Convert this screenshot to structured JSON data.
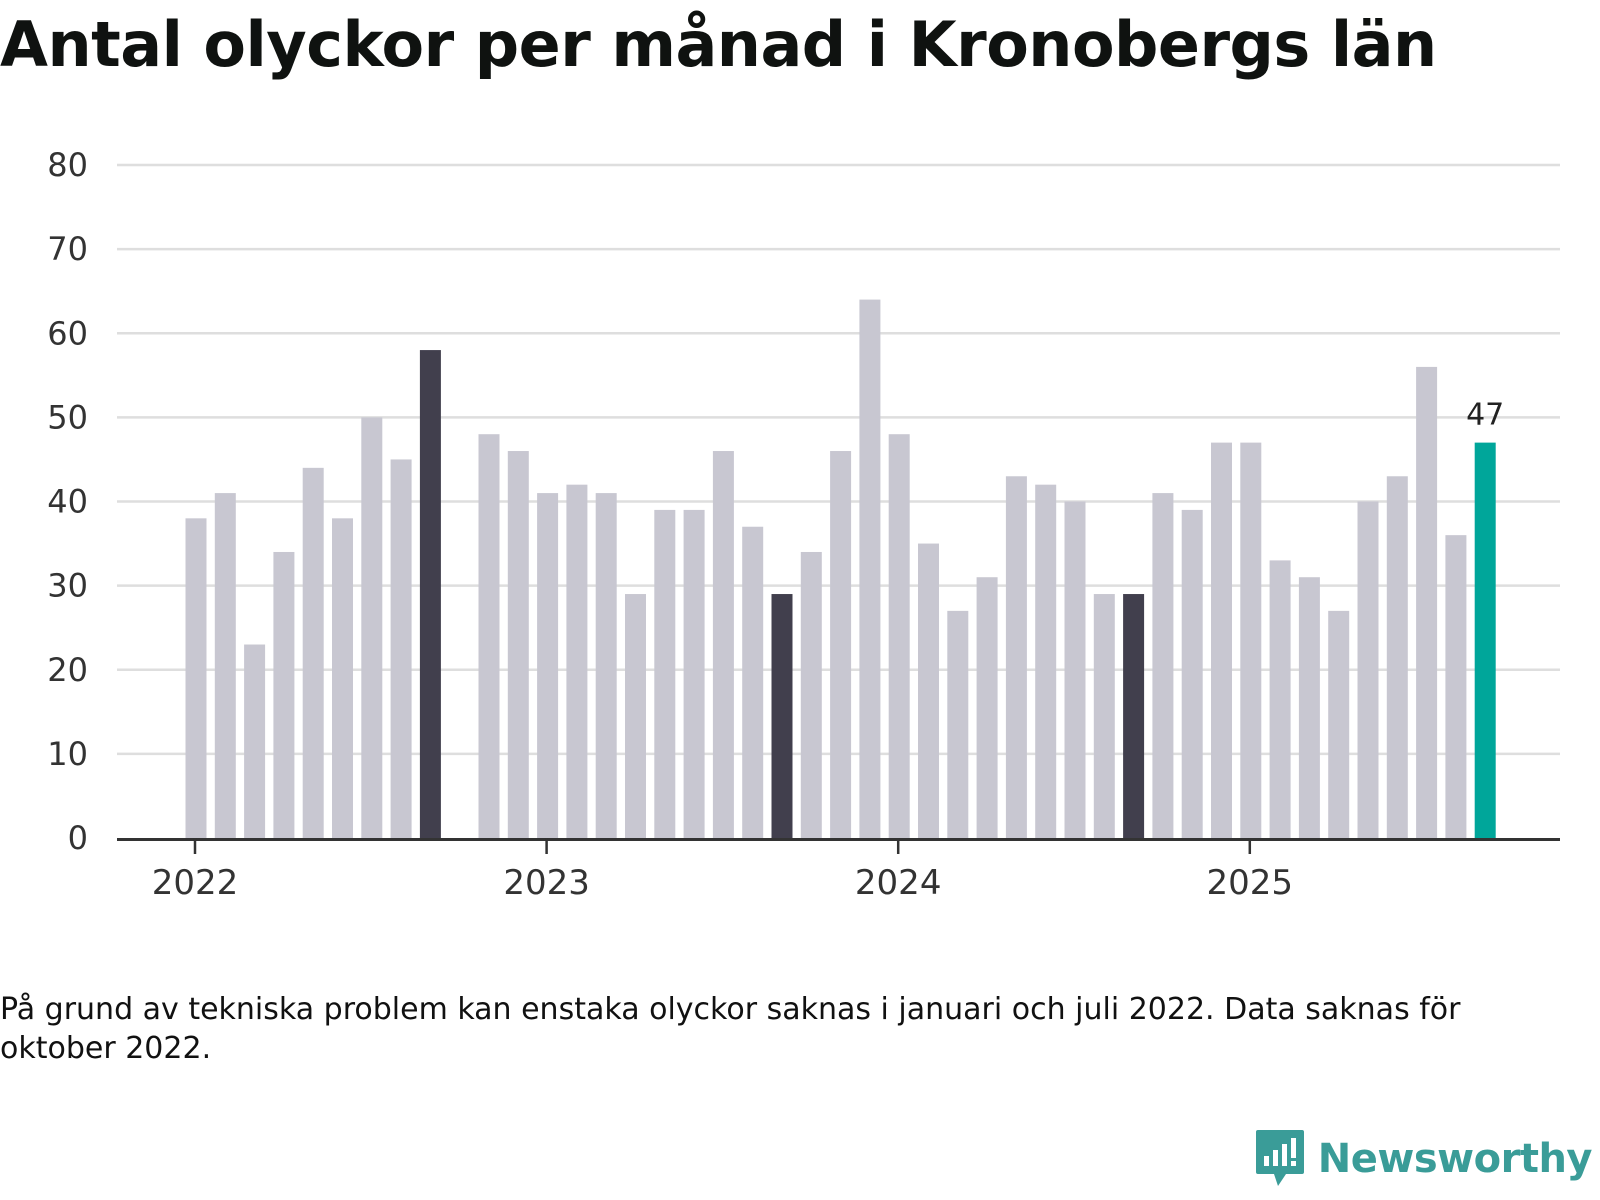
{
  "title": "Antal olyckor per månad i Kronobergs län",
  "note": "På grund av tekniska problem kan enstaka olyckor saknas i januari och juli 2022. Data saknas för oktober 2022.",
  "brand": {
    "name": "Newsworthy",
    "icon": "newsworthy-logo-icon",
    "color": "#3a9c98"
  },
  "chart_data": {
    "type": "bar",
    "title": "Antal olyckor per månad i Kronobergs län",
    "xlabel": "",
    "ylabel": "",
    "ylim": [
      0,
      80
    ],
    "yticks": [
      "0",
      "10",
      "20",
      "30",
      "40",
      "50",
      "60",
      "70",
      "80"
    ],
    "xticks": [
      {
        "label": "2022",
        "month": "2022-01"
      },
      {
        "label": "2023",
        "month": "2023-01"
      },
      {
        "label": "2024",
        "month": "2024-01"
      },
      {
        "label": "2025",
        "month": "2025-01"
      }
    ],
    "grid": true,
    "colors": {
      "default": "#c8c7d1",
      "highlight": "#413f4d",
      "latest": "#00a69a",
      "grid": "#dedede",
      "axis": "#333333"
    },
    "start_month": "2022-01",
    "values": [
      38,
      41,
      23,
      34,
      44,
      38,
      50,
      45,
      58,
      null,
      48,
      46,
      41,
      42,
      41,
      29,
      39,
      39,
      46,
      37,
      29,
      34,
      46,
      64,
      48,
      35,
      27,
      31,
      43,
      42,
      40,
      29,
      29,
      41,
      39,
      47,
      47,
      33,
      31,
      27,
      40,
      43,
      56,
      36,
      47
    ],
    "highlights": [
      8,
      20,
      32
    ],
    "latest_index": 44,
    "data_labels": [
      {
        "index": 44,
        "text": "47"
      }
    ]
  }
}
